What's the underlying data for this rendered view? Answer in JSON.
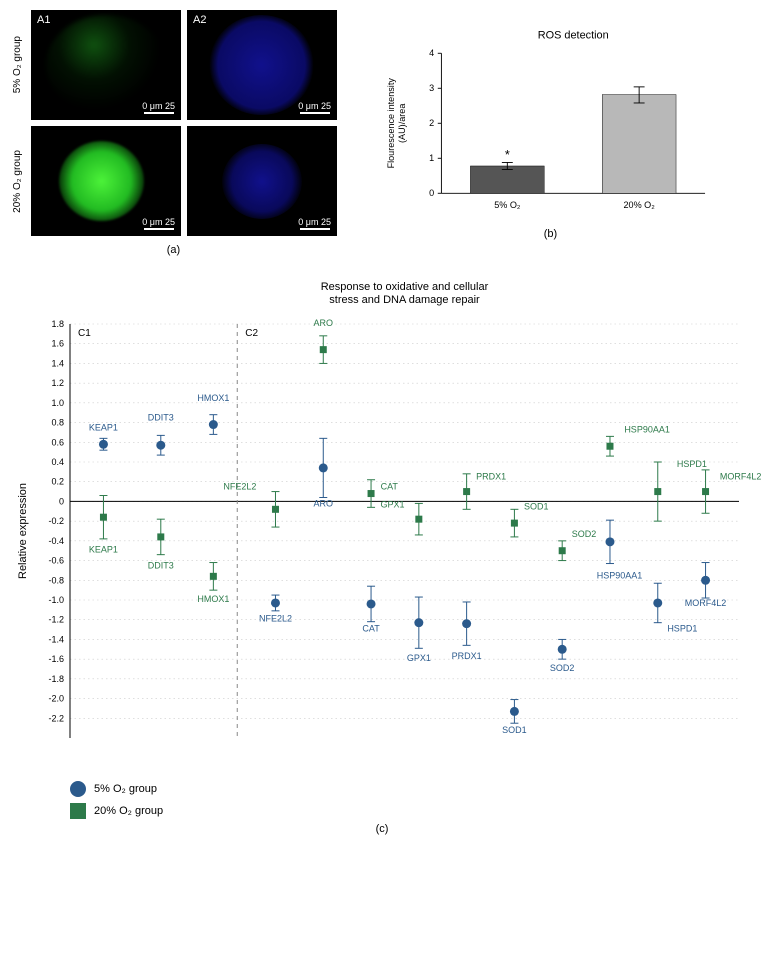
{
  "panel_a": {
    "row1_label": "5% O₂ group",
    "row2_label": "20% O₂ group",
    "img_labels": {
      "a1": "A1",
      "a2": "A2"
    },
    "scale_text": "0 μm 25",
    "sub": "(a)"
  },
  "panel_b": {
    "title": "ROS detection",
    "ylabel": "Flourescence intensity\n(AU)/area",
    "ylim": [
      0,
      4
    ],
    "yticks": [
      0,
      1,
      2,
      3,
      4
    ],
    "categories": [
      "5% O₂",
      "20% O₂"
    ],
    "values": [
      0.78,
      2.82
    ],
    "err_low": [
      0.1,
      0.24
    ],
    "err_high": [
      0.1,
      0.22
    ],
    "bar_colors": [
      "#555555",
      "#b8b8b8"
    ],
    "sig_marker": "*",
    "sig_on_index": 0,
    "axis_color": "#000000",
    "title_fontsize": 12,
    "label_fontsize": 10,
    "tick_fontsize": 10,
    "sub": "(b)"
  },
  "panel_c": {
    "title": "Response to oxidative and cellular\nstress and DNA damage repair",
    "ylabel": "Relative expression",
    "ylim": [
      -2.4,
      1.8
    ],
    "yticks": [
      -2.2,
      -2.0,
      -1.8,
      -1.6,
      -1.4,
      -1.2,
      -1.0,
      -0.8,
      -0.6,
      -0.4,
      -0.2,
      0,
      0.2,
      0.4,
      0.6,
      0.8,
      1.0,
      1.2,
      1.4,
      1.6,
      1.8
    ],
    "section_labels": {
      "c1": "C1",
      "c2": "C2"
    },
    "divider_x": 3.5,
    "grid_color": "#cccccc",
    "axis_color": "#000000",
    "color_5pct": "#2b5a8c",
    "color_20pct": "#2d7a4a",
    "marker_size_5pct": 7,
    "marker_size_20pct": 7,
    "label_fontsize": 9,
    "title_fontsize": 11,
    "tick_fontsize": 9,
    "points_5pct": [
      {
        "x": 0.7,
        "y": 0.58,
        "err": 0.06,
        "label": "KEAP1",
        "lx": 0.7,
        "ly": 0.72,
        "anchor": "middle"
      },
      {
        "x": 1.9,
        "y": 0.57,
        "err": 0.1,
        "label": "DDIT3",
        "lx": 1.9,
        "ly": 0.82,
        "anchor": "middle"
      },
      {
        "x": 3.0,
        "y": 0.78,
        "err": 0.1,
        "label": "HMOX1",
        "lx": 3.0,
        "ly": 1.02,
        "anchor": "middle"
      },
      {
        "x": 4.3,
        "y": -1.03,
        "err": 0.08,
        "label": "NFE2L2",
        "lx": 4.3,
        "ly": -1.22,
        "anchor": "middle"
      },
      {
        "x": 5.3,
        "y": 0.34,
        "err": 0.3,
        "label": "ARO",
        "lx": 5.3,
        "ly": -0.05,
        "anchor": "middle"
      },
      {
        "x": 6.3,
        "y": -1.04,
        "err": 0.18,
        "label": "CAT",
        "lx": 6.3,
        "ly": -1.32,
        "anchor": "middle"
      },
      {
        "x": 7.3,
        "y": -1.23,
        "err": 0.26,
        "label": "GPX1",
        "lx": 7.3,
        "ly": -1.62,
        "anchor": "middle"
      },
      {
        "x": 8.3,
        "y": -1.24,
        "err": 0.22,
        "label": "PRDX1",
        "lx": 8.3,
        "ly": -1.6,
        "anchor": "middle"
      },
      {
        "x": 9.3,
        "y": -2.13,
        "err": 0.12,
        "label": "SOD1",
        "lx": 9.3,
        "ly": -2.35,
        "anchor": "middle"
      },
      {
        "x": 10.3,
        "y": -1.5,
        "err": 0.1,
        "label": "SOD2",
        "lx": 10.3,
        "ly": -1.72,
        "anchor": "middle"
      },
      {
        "x": 11.3,
        "y": -0.41,
        "err": 0.22,
        "label": "HSP90AA1",
        "lx": 11.5,
        "ly": -0.78,
        "anchor": "middle"
      },
      {
        "x": 12.3,
        "y": -1.03,
        "err": 0.2,
        "label": "HSPD1",
        "lx": 12.5,
        "ly": -1.32,
        "anchor": "start"
      },
      {
        "x": 13.3,
        "y": -0.8,
        "err": 0.18,
        "label": "MORF4L2",
        "lx": 13.3,
        "ly": -1.06,
        "anchor": "middle"
      }
    ],
    "points_20pct": [
      {
        "x": 0.7,
        "y": -0.16,
        "err": 0.22,
        "label": "KEAP1",
        "lx": 0.7,
        "ly": -0.52,
        "anchor": "middle"
      },
      {
        "x": 1.9,
        "y": -0.36,
        "err": 0.18,
        "label": "DDIT3",
        "lx": 1.9,
        "ly": -0.68,
        "anchor": "middle"
      },
      {
        "x": 3.0,
        "y": -0.76,
        "err": 0.14,
        "label": "HMOX1",
        "lx": 3.0,
        "ly": -1.02,
        "anchor": "middle"
      },
      {
        "x": 4.3,
        "y": -0.08,
        "err": 0.18,
        "label": "NFE2L2",
        "lx": 3.9,
        "ly": 0.12,
        "anchor": "end"
      },
      {
        "x": 5.3,
        "y": 1.54,
        "err": 0.14,
        "label": "ARO",
        "lx": 5.3,
        "ly": 1.78,
        "anchor": "middle"
      },
      {
        "x": 6.3,
        "y": 0.08,
        "err": 0.14,
        "label": "CAT",
        "lx": 6.5,
        "ly": 0.12,
        "anchor": "start"
      },
      {
        "x": 7.3,
        "y": -0.18,
        "err": 0.16,
        "label": "GPX1",
        "lx": 7.0,
        "ly": -0.06,
        "anchor": "end"
      },
      {
        "x": 8.3,
        "y": 0.1,
        "err": 0.18,
        "label": "PRDX1",
        "lx": 8.5,
        "ly": 0.22,
        "anchor": "start"
      },
      {
        "x": 9.3,
        "y": -0.22,
        "err": 0.14,
        "label": "SOD1",
        "lx": 9.5,
        "ly": -0.08,
        "anchor": "start"
      },
      {
        "x": 10.3,
        "y": -0.5,
        "err": 0.1,
        "label": "SOD2",
        "lx": 10.5,
        "ly": -0.36,
        "anchor": "start"
      },
      {
        "x": 11.3,
        "y": 0.56,
        "err": 0.1,
        "label": "HSP90AA1",
        "lx": 11.6,
        "ly": 0.7,
        "anchor": "start"
      },
      {
        "x": 12.3,
        "y": 0.1,
        "err": 0.3,
        "label": "HSPD1",
        "lx": 12.7,
        "ly": 0.35,
        "anchor": "start"
      },
      {
        "x": 13.3,
        "y": 0.1,
        "err": 0.22,
        "label": "MORF4L2",
        "lx": 13.6,
        "ly": 0.22,
        "anchor": "start"
      }
    ],
    "x_max": 14.0,
    "sub": "(c)",
    "legend": {
      "item1": "5% O₂ group",
      "item2": "20% O₂ group"
    }
  }
}
